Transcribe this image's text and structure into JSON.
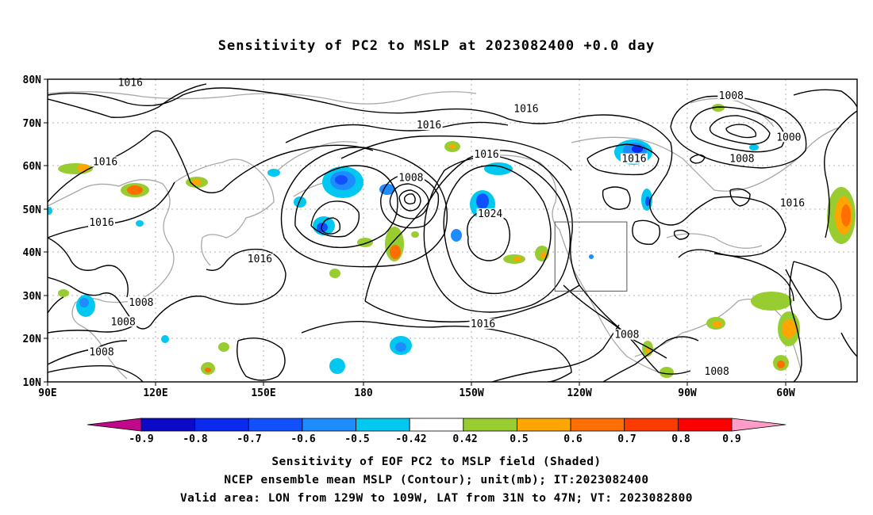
{
  "title": "Sensitivity of PC2 to MSLP at 2023082400 +0.0 day",
  "map": {
    "lat_labels": [
      "80N",
      "70N",
      "60N",
      "50N",
      "40N",
      "30N",
      "20N",
      "10N"
    ],
    "lon_labels": [
      "90E",
      "120E",
      "150E",
      "180",
      "150W",
      "120W",
      "90W",
      "60W"
    ],
    "contour_labels": [
      {
        "text": "1016",
        "lon": 113,
        "lat": 78.8
      },
      {
        "text": "1016",
        "lon": 106,
        "lat": 60.5
      },
      {
        "text": "1016",
        "lon": 105,
        "lat": 46.5
      },
      {
        "text": "1016",
        "lon": 149,
        "lat": 38
      },
      {
        "text": "1008",
        "lon": 116,
        "lat": 28
      },
      {
        "text": "1008",
        "lon": 111,
        "lat": 23.5
      },
      {
        "text": "1008",
        "lon": 105,
        "lat": 16.5
      },
      {
        "text": "1016",
        "lon": 196,
        "lat": 69
      },
      {
        "text": "1016",
        "lon": 223,
        "lat": 72.8
      },
      {
        "text": "1016",
        "lon": 212,
        "lat": 62.2
      },
      {
        "text": "1008",
        "lon": 191,
        "lat": 56.8
      },
      {
        "text": "1024",
        "lon": 213,
        "lat": 48.5
      },
      {
        "text": "1016",
        "lon": 211,
        "lat": 23
      },
      {
        "text": "1008",
        "lon": 251,
        "lat": 20.5
      },
      {
        "text": "1008",
        "lon": 276,
        "lat": 12
      },
      {
        "text": "1016",
        "lon": 253,
        "lat": 61.2
      },
      {
        "text": "1008",
        "lon": 280,
        "lat": 75.8
      },
      {
        "text": "1000",
        "lon": 296,
        "lat": 66.2
      },
      {
        "text": "1008",
        "lon": 283,
        "lat": 61.2
      },
      {
        "text": "1016",
        "lon": 297,
        "lat": 51
      }
    ],
    "valid_box": {
      "lon_min": 231,
      "lon_max": 251,
      "lat_min": 31,
      "lat_max": 47
    }
  },
  "colorbar": {
    "labels": [
      "-0.9",
      "-0.8",
      "-0.7",
      "-0.6",
      "-0.5",
      "-0.42",
      "0.42",
      "0.5",
      "0.6",
      "0.7",
      "0.8",
      "0.9"
    ],
    "colors": [
      "#c2088a",
      "#0a0ac8",
      "#0a2aef",
      "#1050ff",
      "#1e8cff",
      "#00c8f0",
      "#ffffff",
      "#98cd32",
      "#ffa500",
      "#ff6e00",
      "#ff3c00",
      "#ff0000",
      "#ff9cc8"
    ]
  },
  "captions": {
    "line1": "Sensitivity of EOF PC2 to MSLP field (Shaded)",
    "line2": "NCEP ensemble mean MSLP (Contour); unit(mb); IT:2023082400",
    "line3": "Valid area: LON from 129W to 109W, LAT from 31N to 47N; VT: 2023082800"
  }
}
